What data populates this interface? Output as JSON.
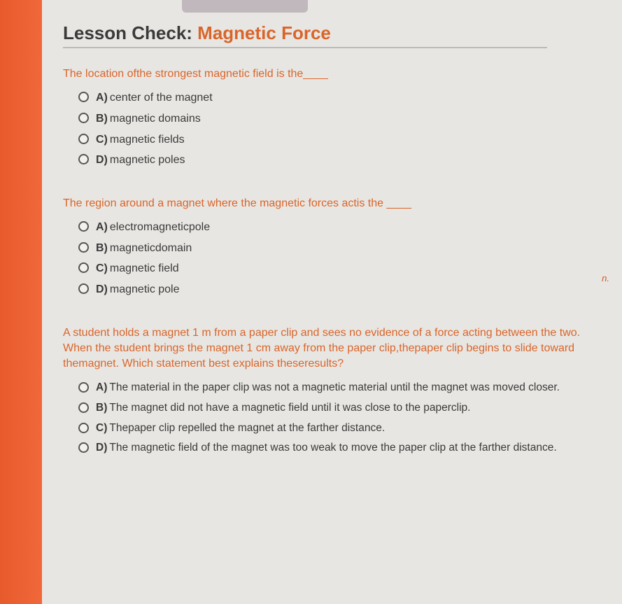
{
  "header": {
    "prefix": "Lesson Check: ",
    "title": "Magnetic Force"
  },
  "side_marker": "n.",
  "questions": [
    {
      "prompt": "The location ofthe strongest magnetic field is the____",
      "choices": [
        {
          "letter": "A)",
          "text": "center of the magnet"
        },
        {
          "letter": "B)",
          "text": "magnetic domains"
        },
        {
          "letter": "C)",
          "text": "magnetic fields"
        },
        {
          "letter": "D)",
          "text": "magnetic poles"
        }
      ]
    },
    {
      "prompt": "The region around a magnet where the magnetic forces actis the ____",
      "choices": [
        {
          "letter": "A)",
          "text": "electromagneticpole"
        },
        {
          "letter": "B)",
          "text": "magneticdomain"
        },
        {
          "letter": "C)",
          "text": "magnetic field"
        },
        {
          "letter": "D)",
          "text": "magnetic pole"
        }
      ]
    },
    {
      "prompt": "A student holds a magnet 1 m from a paper clip and sees no evidence of a force acting between the two. When the student brings the magnet 1 cm away from the paper clip,thepaper clip begins to slide toward themagnet. Which statement best explains theseresults?",
      "choices": [
        {
          "letter": "A)",
          "text": "The material in the paper clip was not a magnetic material until the magnet was moved closer."
        },
        {
          "letter": "B)",
          "text": "The magnet did not have a magnetic field until it was close to the paperclip."
        },
        {
          "letter": "C)",
          "text": "Thepaper clip repelled the magnet at the farther distance."
        },
        {
          "letter": "D)",
          "text": "The magnetic field of the magnet was too weak to move the paper clip at the farther distance."
        }
      ]
    }
  ]
}
